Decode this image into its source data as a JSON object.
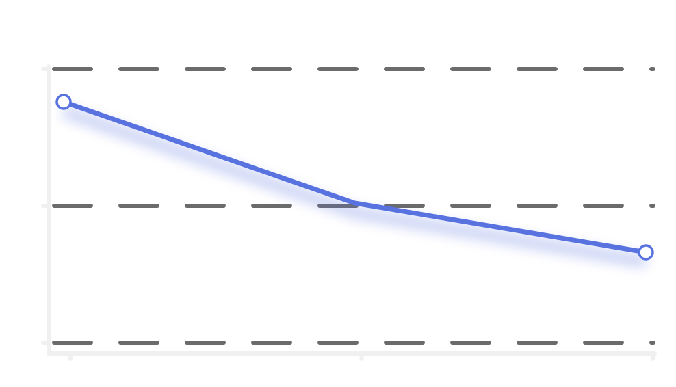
{
  "chart_data": {
    "type": "line",
    "x": [
      0,
      1,
      2
    ],
    "ylim": [
      0,
      100
    ],
    "series": [
      {
        "values": [
          88,
          51,
          33
        ],
        "color": "#5872df"
      }
    ],
    "grid": true,
    "grid_style": "dashed",
    "grid_color": "#6b6b6b",
    "axis_color": "#f0f0f0",
    "markers": [
      "first",
      "last"
    ]
  }
}
